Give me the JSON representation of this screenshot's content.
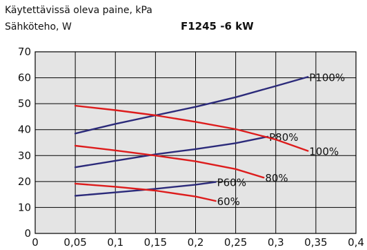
{
  "chart_data": {
    "type": "line",
    "title": "F1245 -6 kW",
    "ylabel_lines": [
      "Käytettävissä oleva paine, kPa",
      "Sähköteho, W"
    ],
    "xlabel": "",
    "x_ticks": [
      "0",
      "0,05",
      "0,1",
      "0,15",
      "0,2",
      "0,25",
      "0,3",
      "0,35",
      "0,4"
    ],
    "y_ticks": [
      "0",
      "10",
      "20",
      "30",
      "40",
      "50",
      "60",
      "70"
    ],
    "xlim": [
      0,
      0.4
    ],
    "ylim": [
      0,
      70
    ],
    "grid": true,
    "series": [
      {
        "name": "P100%",
        "color": "#2b2a7a",
        "x": [
          0.05,
          0.1,
          0.15,
          0.2,
          0.25,
          0.3,
          0.34
        ],
        "y": [
          38.5,
          42.2,
          45.5,
          48.8,
          52.5,
          56.8,
          60.3
        ]
      },
      {
        "name": "P80%",
        "color": "#2b2a7a",
        "x": [
          0.05,
          0.1,
          0.15,
          0.2,
          0.25,
          0.29
        ],
        "y": [
          25.5,
          28.0,
          30.5,
          32.5,
          34.8,
          37.3
        ]
      },
      {
        "name": "P60%",
        "color": "#2b2a7a",
        "x": [
          0.05,
          0.1,
          0.15,
          0.2,
          0.225
        ],
        "y": [
          14.5,
          15.8,
          17.2,
          18.8,
          19.8
        ]
      },
      {
        "name": "100%",
        "color": "#dd1c1c",
        "x": [
          0.05,
          0.1,
          0.15,
          0.2,
          0.25,
          0.3,
          0.34
        ],
        "y": [
          49.2,
          47.5,
          45.5,
          43.0,
          40.2,
          36.2,
          31.8
        ]
      },
      {
        "name": "80%",
        "color": "#dd1c1c",
        "x": [
          0.05,
          0.1,
          0.15,
          0.2,
          0.25,
          0.285
        ],
        "y": [
          33.8,
          32.0,
          30.0,
          27.8,
          24.8,
          21.5
        ]
      },
      {
        "name": "60%",
        "color": "#dd1c1c",
        "x": [
          0.05,
          0.1,
          0.15,
          0.2,
          0.225
        ],
        "y": [
          19.2,
          18.0,
          16.5,
          14.2,
          12.5
        ]
      }
    ]
  }
}
